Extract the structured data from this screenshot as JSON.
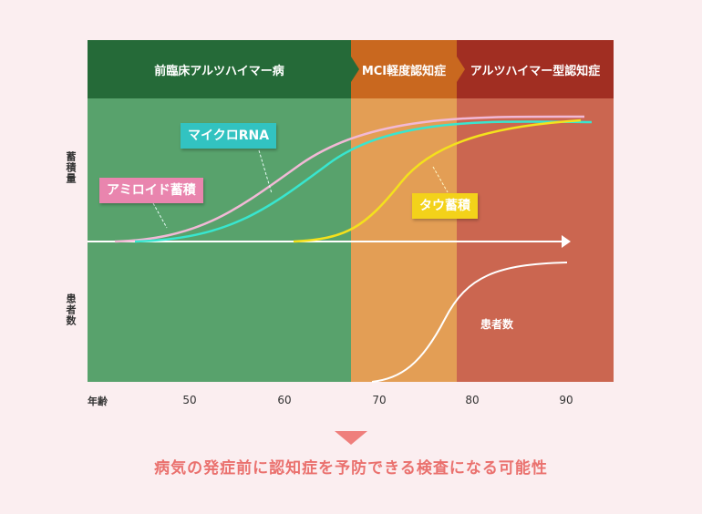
{
  "phases": {
    "preclinical": "前臨床アルツハイマー病",
    "mci": "MCI軽度認知症",
    "alzheimers": "アルツハイマー型認知症"
  },
  "y_labels": {
    "accumulation": "蓄積量",
    "patients": "患者数"
  },
  "curve_labels": {
    "microrna": "マイクロRNA",
    "amyloid": "アミロイド蓄積",
    "tau": "タウ蓄積",
    "patients": "患者数"
  },
  "x_axis": {
    "unit": "年齢",
    "ticks": [
      "50",
      "60",
      "70",
      "80",
      "90"
    ]
  },
  "conclusion": "病気の発症前に認知症を予防できる検査になる可能性",
  "colors": {
    "preclinical_header": "#256a38",
    "preclinical_body": "#58a26c",
    "mci_header": "#c9681f",
    "mci_body": "#e39e55",
    "alzheimers_header": "#a12e22",
    "alzheimers_body": "#cb6650",
    "microrna": "#32c3c1",
    "amyloid": "#e985ae",
    "tau": "#f3d21a",
    "conclusion": "#ea716e"
  }
}
